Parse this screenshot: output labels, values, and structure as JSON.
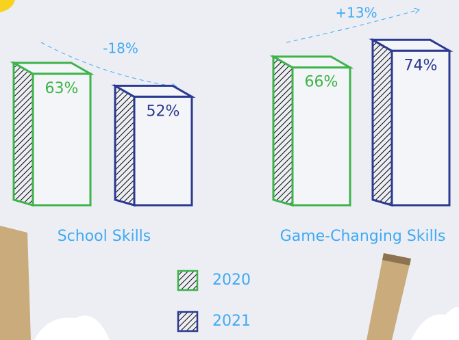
{
  "chart_data": {
    "type": "bar3d",
    "categories": [
      "School Skills",
      "Game-Changing Skills"
    ],
    "series": [
      {
        "name": "2020",
        "color": "#3db34a",
        "values": [
          63,
          66
        ],
        "value_labels": [
          "63%",
          "66%"
        ]
      },
      {
        "name": "2021",
        "color": "#2b3990",
        "values": [
          52,
          74
        ],
        "value_labels": [
          "52%",
          "74%"
        ]
      }
    ],
    "annotations": [
      "-18%",
      "+13%"
    ],
    "label_color": "#3fa9f5"
  }
}
